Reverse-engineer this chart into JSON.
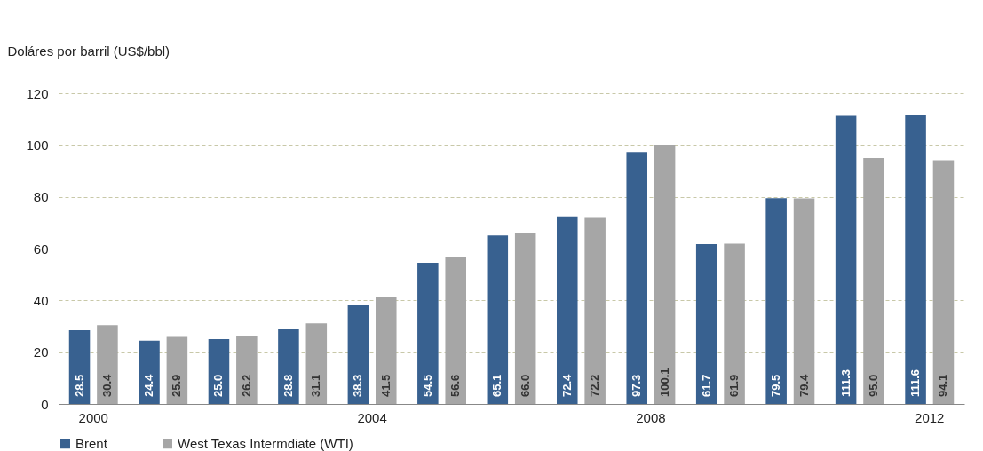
{
  "chart_data": {
    "type": "bar",
    "ylabel": "Doláres por barril (US$/bbl)",
    "categories": [
      "2000",
      null,
      null,
      null,
      "2004",
      null,
      null,
      null,
      "2008",
      null,
      null,
      null,
      "2012"
    ],
    "series": [
      {
        "name": "Brent",
        "color": "#386190",
        "values": [
          28.5,
          24.4,
          25.0,
          28.8,
          38.3,
          54.5,
          65.1,
          72.4,
          97.3,
          61.7,
          79.5,
          111.3,
          111.6
        ],
        "value_labels": [
          "28.5",
          "24.4",
          "25.0",
          "28.8",
          "38.3",
          "54.5",
          "65.1",
          "72.4",
          "97.3",
          "61.7",
          "79.5",
          "111.3",
          "111.6"
        ]
      },
      {
        "name": "West Texas Intermdiate (WTI)",
        "color": "#a6a6a6",
        "values": [
          30.4,
          25.9,
          26.2,
          31.1,
          41.5,
          56.6,
          66.0,
          72.2,
          100.1,
          61.9,
          79.4,
          95.0,
          94.1
        ],
        "value_labels": [
          "30.4",
          "25.9",
          "26.2",
          "31.1",
          "41.5",
          "56.6",
          "66.0",
          "72.2",
          "100.1",
          "61.9",
          "79.4",
          "95.0",
          "94.1"
        ]
      }
    ],
    "ylim": [
      0,
      120
    ],
    "yticks": [
      0,
      20,
      40,
      60,
      80,
      100,
      120
    ],
    "grid": "y",
    "legend": "bottom"
  }
}
